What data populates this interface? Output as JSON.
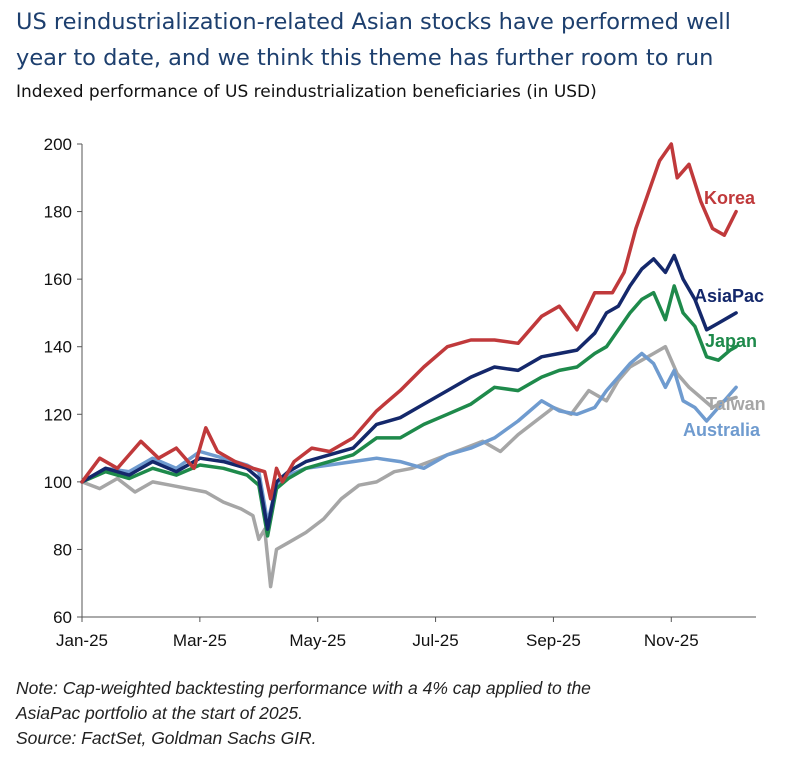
{
  "title": "US reindustrialization-related Asian stocks have performed well year to date, and we think this theme has further room to run",
  "subtitle": "Indexed performance of US reindustrialization beneficiaries (in USD)",
  "notes": {
    "line1": "Note: Cap-weighted backtesting performance with a 4% cap applied to the",
    "line2": "AsiaPac portfolio at the start of 2025.",
    "line3": "Source: FactSet, Goldman Sachs GIR."
  },
  "chart_data": {
    "type": "line",
    "title": "Indexed performance of US reindustrialization beneficiaries (in USD)",
    "xlabel": "",
    "ylabel": "",
    "ylim": [
      60,
      200
    ],
    "yticks": [
      60,
      80,
      100,
      120,
      140,
      160,
      180,
      200
    ],
    "xlim": [
      0,
      11.2
    ],
    "xticks": [
      0,
      2,
      4,
      6,
      8,
      10
    ],
    "xtick_labels": [
      "Jan-25",
      "Mar-25",
      "May-25",
      "Jul-25",
      "Sep-25",
      "Nov-25"
    ],
    "series": [
      {
        "name": "Korea",
        "color": "#c0393b",
        "x": [
          0,
          0.3,
          0.6,
          1.0,
          1.3,
          1.6,
          1.9,
          2.1,
          2.3,
          2.6,
          2.9,
          3.1,
          3.2,
          3.3,
          3.4,
          3.6,
          3.9,
          4.2,
          4.6,
          5.0,
          5.4,
          5.8,
          6.2,
          6.6,
          7.0,
          7.4,
          7.8,
          8.1,
          8.4,
          8.7,
          9.0,
          9.2,
          9.4,
          9.6,
          9.8,
          10.0,
          10.1,
          10.3,
          10.5,
          10.7,
          10.9,
          11.1
        ],
        "values": [
          100,
          107,
          104,
          112,
          107,
          110,
          104,
          116,
          109,
          106,
          104,
          103,
          95,
          104,
          100,
          106,
          110,
          109,
          113,
          121,
          127,
          134,
          140,
          142,
          142,
          141,
          149,
          152,
          145,
          156,
          156,
          162,
          175,
          185,
          195,
          200,
          190,
          194,
          183,
          175,
          173,
          180
        ]
      },
      {
        "name": "AsiaPac",
        "color": "#14286b",
        "x": [
          0,
          0.4,
          0.8,
          1.2,
          1.6,
          2.0,
          2.4,
          2.8,
          3.0,
          3.15,
          3.3,
          3.5,
          3.8,
          4.2,
          4.6,
          5.0,
          5.4,
          5.8,
          6.2,
          6.6,
          7.0,
          7.4,
          7.8,
          8.1,
          8.4,
          8.7,
          8.9,
          9.1,
          9.3,
          9.5,
          9.7,
          9.9,
          10.05,
          10.2,
          10.4,
          10.6,
          10.8,
          11.0,
          11.1
        ],
        "values": [
          100,
          104,
          102,
          106,
          103,
          107,
          106,
          104,
          101,
          86,
          100,
          103,
          106,
          108,
          110,
          117,
          119,
          123,
          127,
          131,
          134,
          133,
          137,
          138,
          139,
          144,
          150,
          152,
          158,
          163,
          166,
          162,
          167,
          160,
          154,
          145,
          147,
          149,
          150
        ]
      },
      {
        "name": "Japan",
        "color": "#1e8a4b",
        "x": [
          0,
          0.4,
          0.8,
          1.2,
          1.6,
          2.0,
          2.4,
          2.8,
          3.0,
          3.15,
          3.3,
          3.5,
          3.8,
          4.2,
          4.6,
          5.0,
          5.4,
          5.8,
          6.2,
          6.6,
          7.0,
          7.4,
          7.8,
          8.1,
          8.4,
          8.7,
          8.9,
          9.1,
          9.3,
          9.5,
          9.7,
          9.9,
          10.05,
          10.2,
          10.4,
          10.6,
          10.8,
          11.0,
          11.1
        ],
        "values": [
          100,
          103,
          101,
          104,
          102,
          105,
          104,
          102,
          99,
          84,
          98,
          101,
          104,
          106,
          108,
          113,
          113,
          117,
          120,
          123,
          128,
          127,
          131,
          133,
          134,
          138,
          140,
          145,
          150,
          154,
          156,
          148,
          158,
          150,
          146,
          137,
          136,
          139,
          140
        ]
      },
      {
        "name": "Taiwan",
        "color": "#a6a6a6",
        "x": [
          0,
          0.3,
          0.6,
          0.9,
          1.2,
          1.5,
          1.8,
          2.1,
          2.4,
          2.7,
          2.9,
          3.0,
          3.1,
          3.2,
          3.3,
          3.5,
          3.8,
          4.1,
          4.4,
          4.7,
          5.0,
          5.3,
          5.6,
          5.9,
          6.2,
          6.5,
          6.8,
          7.1,
          7.4,
          7.7,
          8.0,
          8.3,
          8.6,
          8.9,
          9.1,
          9.3,
          9.5,
          9.7,
          9.9,
          10.1,
          10.3,
          10.5,
          10.7,
          10.9,
          11.1
        ],
        "values": [
          100,
          98,
          101,
          97,
          100,
          99,
          98,
          97,
          94,
          92,
          90,
          83,
          86,
          69,
          80,
          82,
          85,
          89,
          95,
          99,
          100,
          103,
          104,
          106,
          108,
          110,
          112,
          109,
          114,
          118,
          122,
          120,
          127,
          124,
          130,
          134,
          136,
          138,
          140,
          132,
          128,
          125,
          122,
          124,
          125
        ]
      },
      {
        "name": "Australia",
        "color": "#6f9bcf",
        "x": [
          0,
          0.4,
          0.8,
          1.2,
          1.6,
          2.0,
          2.4,
          2.8,
          3.0,
          3.15,
          3.3,
          3.5,
          3.8,
          4.2,
          4.6,
          5.0,
          5.4,
          5.8,
          6.2,
          6.6,
          7.0,
          7.4,
          7.8,
          8.1,
          8.4,
          8.7,
          8.9,
          9.1,
          9.3,
          9.5,
          9.7,
          9.9,
          10.05,
          10.2,
          10.4,
          10.6,
          10.8,
          11.0,
          11.1
        ],
        "values": [
          100,
          104,
          103,
          107,
          104,
          109,
          107,
          105,
          103,
          88,
          99,
          102,
          104,
          105,
          106,
          107,
          106,
          104,
          108,
          110,
          113,
          118,
          124,
          121,
          120,
          122,
          127,
          131,
          135,
          138,
          135,
          128,
          133,
          124,
          122,
          118,
          122,
          126,
          128
        ]
      }
    ],
    "annotations": [
      {
        "text": "Korea",
        "series": "Korea"
      },
      {
        "text": "AsiaPac",
        "series": "AsiaPac"
      },
      {
        "text": "Japan",
        "series": "Japan"
      },
      {
        "text": "Taiwan",
        "series": "Taiwan"
      },
      {
        "text": "Australia",
        "series": "Australia"
      }
    ]
  }
}
